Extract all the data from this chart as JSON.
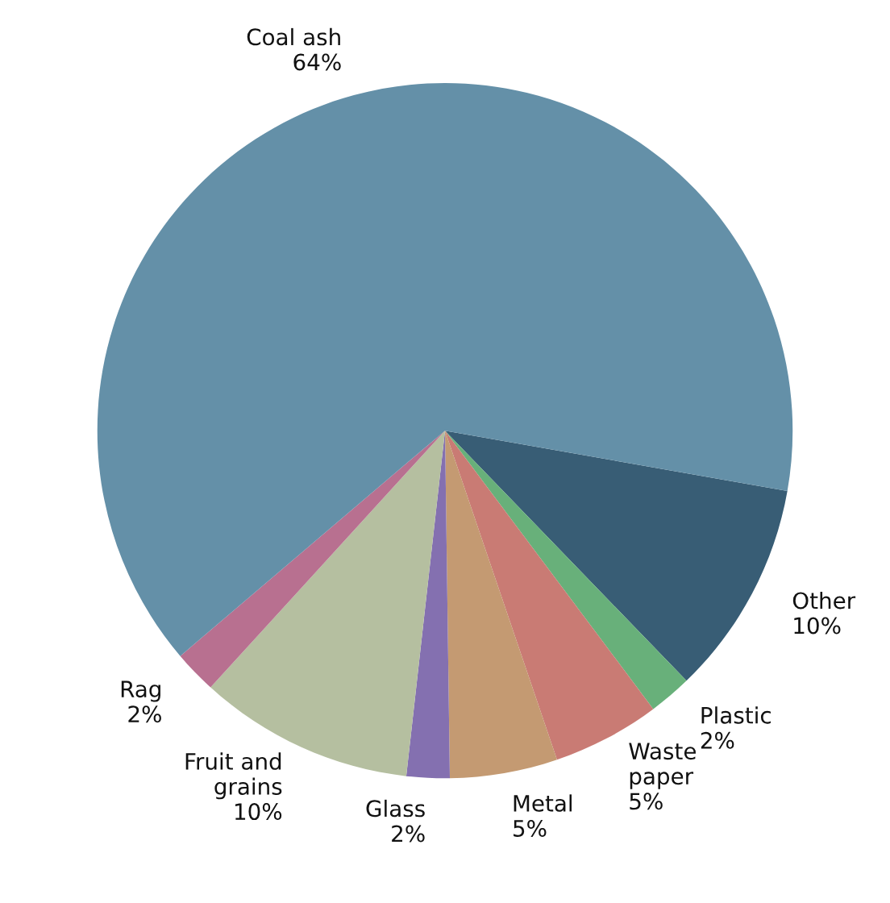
{
  "chart_data": {
    "type": "pie",
    "categories": [
      "Other",
      "Plastic",
      "Waste\npaper",
      "Metal",
      "Glass",
      "Fruit and\ngrains",
      "Rag",
      "Coal ash"
    ],
    "values": [
      10,
      2,
      5,
      5,
      2,
      10,
      2,
      64
    ],
    "value_labels": [
      "10%",
      "2%",
      "5%",
      "5%",
      "2%",
      "10%",
      "2%",
      "64%"
    ],
    "colors": [
      "#385d75",
      "#68b07a",
      "#c97b74",
      "#c49a72",
      "#8470b0",
      "#b5bfa0",
      "#b87090",
      "#6490a8"
    ]
  }
}
